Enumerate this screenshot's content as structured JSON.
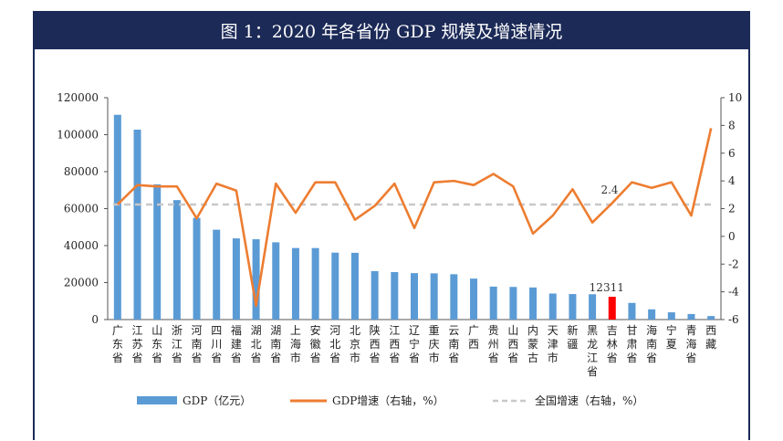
{
  "title": "图 1：2020 年各省份 GDP 规模及增速情况",
  "colors": {
    "bar": "#5b9bd5",
    "bar_highlight": "#ff0000",
    "line": "#ed7d31",
    "national": "#c8c8c8",
    "title_bg": "#1c2a57"
  },
  "chart_data": {
    "type": "bar",
    "categories": [
      "广东省",
      "江苏省",
      "山东省",
      "浙江省",
      "河南省",
      "四川省",
      "福建省",
      "湖北省",
      "湖南省",
      "上海市",
      "安徽省",
      "河北省",
      "北京市",
      "陕西省",
      "江西省",
      "辽宁省",
      "重庆市",
      "云南省",
      "广西",
      "贵州省",
      "山西省",
      "内蒙古",
      "天津市",
      "新疆",
      "黑龙江省",
      "吉林省",
      "甘肃省",
      "海南省",
      "宁夏",
      "青海省",
      "西藏"
    ],
    "series": [
      {
        "name": "GDP（亿元）",
        "axis": "left",
        "values": [
          110761,
          102719,
          73129,
          64613,
          54997,
          48599,
          43904,
          43443,
          41782,
          38701,
          38681,
          36207,
          36103,
          26182,
          25692,
          25115,
          25003,
          24522,
          22157,
          17827,
          17652,
          17360,
          14084,
          13798,
          13699,
          12311,
          9017,
          5532,
          3921,
          3006,
          1903
        ]
      },
      {
        "name": "GDP增速（右轴，%）",
        "axis": "right",
        "values": [
          2.3,
          3.7,
          3.6,
          3.6,
          1.3,
          3.8,
          3.3,
          -5.0,
          3.8,
          1.7,
          3.9,
          3.9,
          1.2,
          2.2,
          3.8,
          0.6,
          3.9,
          4.0,
          3.7,
          4.5,
          3.6,
          0.2,
          1.5,
          3.4,
          1.0,
          2.4,
          3.9,
          3.5,
          3.9,
          1.5,
          7.8
        ]
      },
      {
        "name": "全国增速（右轴，%）",
        "axis": "right",
        "value": 2.3
      }
    ],
    "highlight_index": 25,
    "annotations": [
      "12311",
      "2.4"
    ],
    "ylim": [
      0,
      120000
    ],
    "y2lim": [
      -6,
      10
    ],
    "yticks": [
      "0",
      "20000",
      "40000",
      "60000",
      "80000",
      "100000",
      "120000"
    ],
    "y2ticks": [
      "-6",
      "-4",
      "-2",
      "0",
      "2",
      "4",
      "6",
      "8",
      "10"
    ],
    "legend_position": "bottom"
  }
}
